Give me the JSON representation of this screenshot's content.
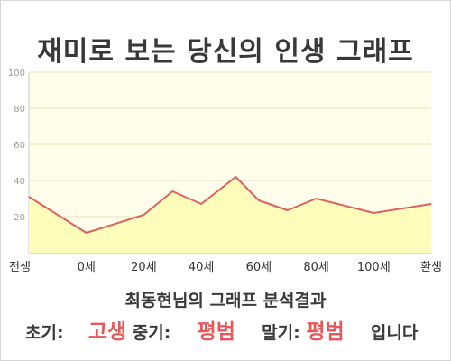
{
  "title": "재미로 보는 당신의 인생 그래프",
  "subtitle": "최동현님의 그래프 분석결과",
  "result": {
    "early_label": "초기:",
    "early_value": "고생",
    "middle_label": "중기:",
    "middle_value": "평범",
    "late_label": "말기:",
    "late_value": "평범",
    "suffix": "입니다"
  },
  "colors": {
    "line": "#e06060",
    "fill": "#fefdb9",
    "plot_background": "#fffeea",
    "highlight_text": "#e8585a"
  },
  "chart_data": {
    "type": "area",
    "title": "재미로 보는 당신의 인생 그래프",
    "xlabel": "",
    "ylabel": "",
    "y_ticks": [
      20,
      40,
      60,
      80,
      100
    ],
    "ylim": [
      0,
      100
    ],
    "x_ticks": [
      {
        "pos": 0,
        "label": "전생"
      },
      {
        "pos": 1,
        "label": "0세"
      },
      {
        "pos": 2,
        "label": "20세"
      },
      {
        "pos": 3,
        "label": "40세"
      },
      {
        "pos": 4,
        "label": "60세"
      },
      {
        "pos": 5,
        "label": "80세"
      },
      {
        "pos": 6,
        "label": "100세"
      },
      {
        "pos": 7,
        "label": "환생"
      }
    ],
    "x_range": [
      0,
      7
    ],
    "points": [
      {
        "x": 0,
        "y": 31
      },
      {
        "x": 1,
        "y": 11
      },
      {
        "x": 2,
        "y": 21
      },
      {
        "x": 2.5,
        "y": 34
      },
      {
        "x": 3,
        "y": 27
      },
      {
        "x": 3.6,
        "y": 42
      },
      {
        "x": 4,
        "y": 29
      },
      {
        "x": 4.5,
        "y": 23.5
      },
      {
        "x": 5,
        "y": 30
      },
      {
        "x": 6,
        "y": 22
      },
      {
        "x": 7,
        "y": 27
      }
    ],
    "grid": true,
    "legend": "none"
  }
}
